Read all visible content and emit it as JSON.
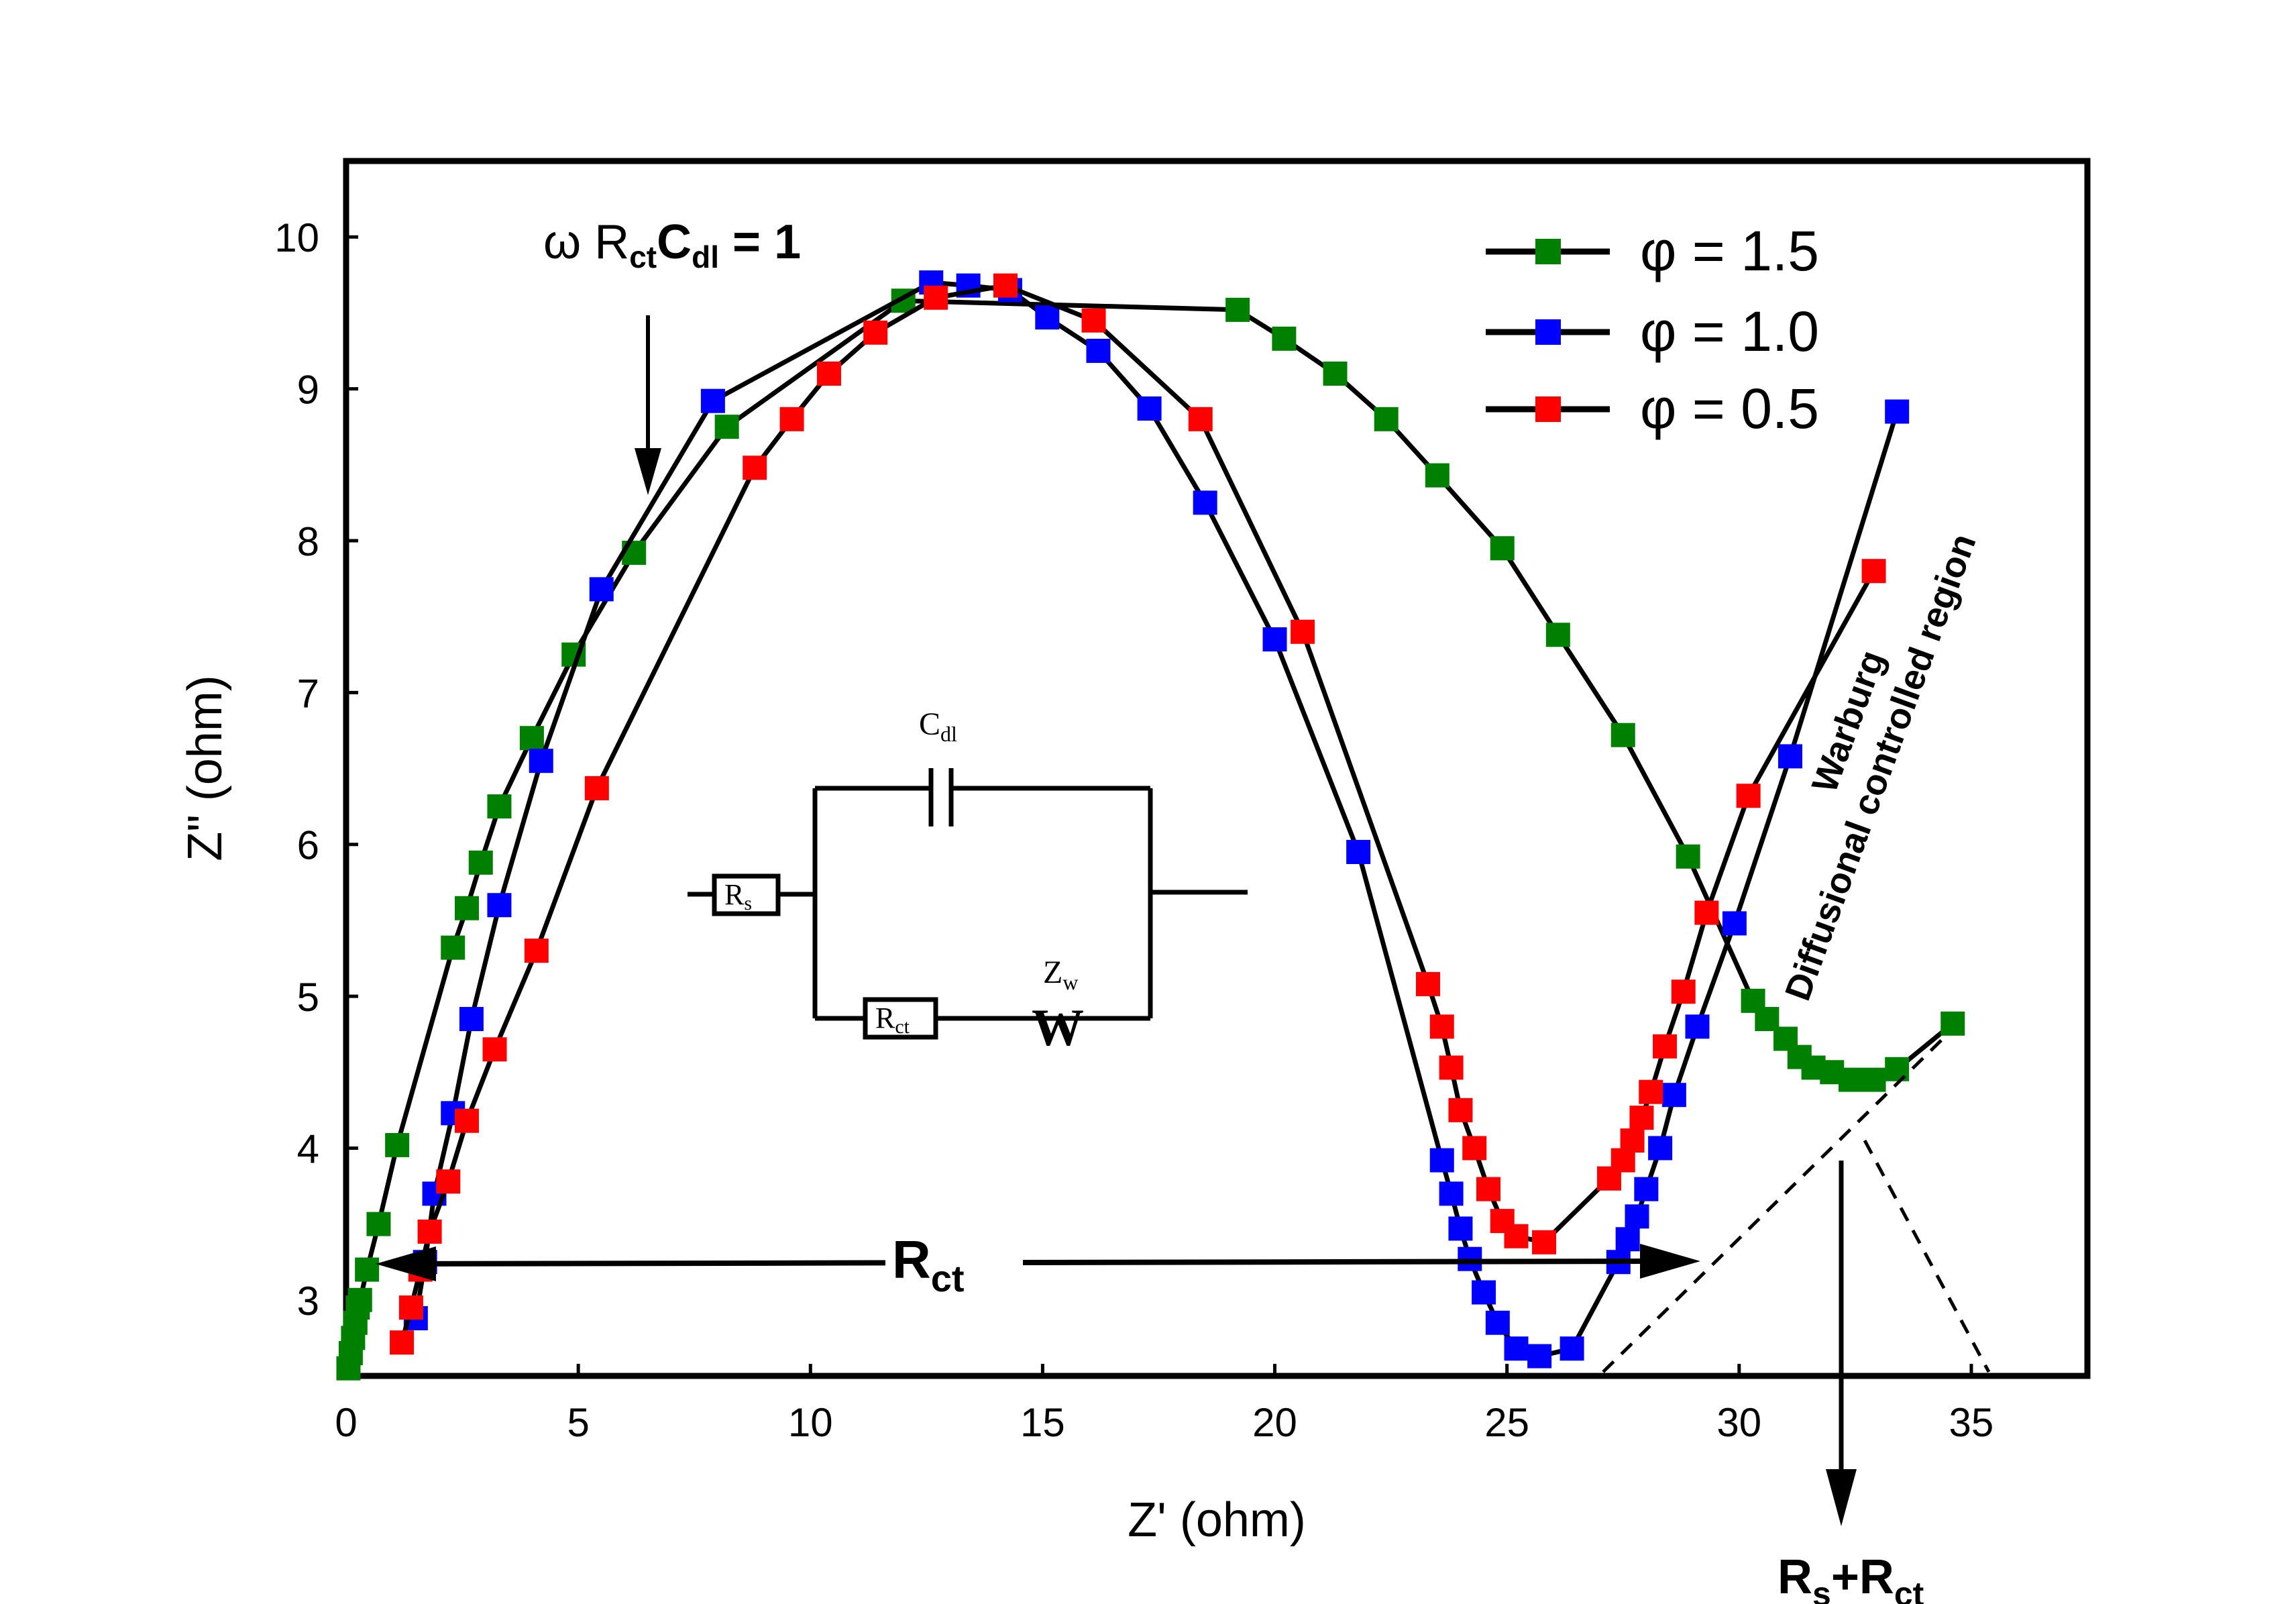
{
  "chart_data": {
    "type": "line",
    "xlabel": "Z' (ohm)",
    "ylabel": "Z\" (ohm)",
    "xlim": [
      0,
      37.5
    ],
    "ylim": [
      2.5,
      10.5
    ],
    "x_ticks": [
      0,
      5,
      10,
      15,
      20,
      25,
      30,
      35
    ],
    "x_tick_labels": [
      "0",
      "5",
      "10",
      "15",
      "20",
      "25",
      "30",
      "35"
    ],
    "y_ticks": [
      3,
      4,
      5,
      6,
      7,
      8,
      9,
      10
    ],
    "y_tick_labels": [
      "3",
      "4",
      "5",
      "6",
      "7",
      "8",
      "9",
      "10"
    ],
    "legend_position": "top-right",
    "series": [
      {
        "name": "φ = 1.5",
        "color": "#008000",
        "points": [
          [
            0.05,
            2.55
          ],
          [
            0.1,
            2.65
          ],
          [
            0.15,
            2.75
          ],
          [
            0.2,
            2.85
          ],
          [
            0.25,
            2.95
          ],
          [
            0.3,
            3.0
          ],
          [
            0.45,
            3.2
          ],
          [
            0.7,
            3.5
          ],
          [
            1.1,
            4.02
          ],
          [
            2.3,
            5.32
          ],
          [
            2.6,
            5.58
          ],
          [
            2.9,
            5.88
          ],
          [
            3.3,
            6.25
          ],
          [
            4.0,
            6.7
          ],
          [
            4.9,
            7.25
          ],
          [
            6.2,
            7.92
          ],
          [
            8.2,
            8.75
          ],
          [
            12.0,
            9.58
          ],
          [
            19.2,
            9.52
          ],
          [
            20.2,
            9.33
          ],
          [
            21.3,
            9.1
          ],
          [
            22.4,
            8.8
          ],
          [
            23.5,
            8.43
          ],
          [
            24.9,
            7.95
          ],
          [
            26.1,
            7.38
          ],
          [
            27.5,
            6.72
          ],
          [
            28.9,
            5.92
          ],
          [
            30.3,
            4.97
          ],
          [
            30.6,
            4.85
          ],
          [
            31.0,
            4.72
          ],
          [
            31.3,
            4.6
          ],
          [
            31.6,
            4.53
          ],
          [
            32.0,
            4.5
          ],
          [
            32.4,
            4.45
          ],
          [
            32.9,
            4.45
          ],
          [
            33.4,
            4.52
          ],
          [
            34.6,
            4.82
          ]
        ]
      },
      {
        "name": "φ = 1.0",
        "color": "#0000ff",
        "points": [
          [
            1.5,
            2.88
          ],
          [
            1.7,
            3.25
          ],
          [
            1.9,
            3.7
          ],
          [
            2.3,
            4.23
          ],
          [
            2.7,
            4.85
          ],
          [
            3.3,
            5.6
          ],
          [
            4.2,
            6.55
          ],
          [
            5.5,
            7.68
          ],
          [
            7.9,
            8.92
          ],
          [
            12.6,
            9.7
          ],
          [
            13.4,
            9.68
          ],
          [
            14.3,
            9.65
          ],
          [
            15.1,
            9.47
          ],
          [
            16.2,
            9.25
          ],
          [
            17.3,
            8.87
          ],
          [
            18.5,
            8.25
          ],
          [
            20.0,
            7.35
          ],
          [
            21.8,
            5.95
          ],
          [
            23.6,
            3.92
          ],
          [
            23.8,
            3.7
          ],
          [
            24.0,
            3.47
          ],
          [
            24.2,
            3.27
          ],
          [
            24.5,
            3.05
          ],
          [
            24.8,
            2.85
          ],
          [
            25.2,
            2.68
          ],
          [
            25.7,
            2.63
          ],
          [
            26.4,
            2.68
          ],
          [
            27.4,
            3.25
          ],
          [
            27.6,
            3.4
          ],
          [
            27.8,
            3.55
          ],
          [
            28.0,
            3.73
          ],
          [
            28.3,
            4.0
          ],
          [
            28.6,
            4.35
          ],
          [
            29.1,
            4.8
          ],
          [
            29.9,
            5.48
          ],
          [
            31.1,
            6.58
          ],
          [
            33.4,
            8.85
          ]
        ]
      },
      {
        "name": "φ = 0.5",
        "color": "#ff0000",
        "points": [
          [
            1.2,
            2.72
          ],
          [
            1.4,
            2.95
          ],
          [
            1.6,
            3.2
          ],
          [
            1.8,
            3.45
          ],
          [
            2.2,
            3.78
          ],
          [
            2.6,
            4.18
          ],
          [
            3.2,
            4.65
          ],
          [
            4.1,
            5.3
          ],
          [
            5.4,
            6.37
          ],
          [
            8.8,
            8.48
          ],
          [
            9.6,
            8.8
          ],
          [
            10.4,
            9.1
          ],
          [
            11.4,
            9.37
          ],
          [
            12.7,
            9.6
          ],
          [
            14.2,
            9.68
          ],
          [
            16.1,
            9.45
          ],
          [
            18.4,
            8.8
          ],
          [
            20.6,
            7.4
          ],
          [
            23.3,
            5.08
          ],
          [
            23.6,
            4.8
          ],
          [
            23.8,
            4.53
          ],
          [
            24.0,
            4.25
          ],
          [
            24.3,
            4.0
          ],
          [
            24.6,
            3.73
          ],
          [
            24.9,
            3.52
          ],
          [
            25.2,
            3.42
          ],
          [
            25.8,
            3.38
          ],
          [
            27.2,
            3.8
          ],
          [
            27.5,
            3.92
          ],
          [
            27.7,
            4.05
          ],
          [
            27.9,
            4.2
          ],
          [
            28.1,
            4.37
          ],
          [
            28.4,
            4.67
          ],
          [
            28.8,
            5.03
          ],
          [
            29.3,
            5.55
          ],
          [
            30.2,
            6.32
          ],
          [
            32.9,
            7.8
          ]
        ]
      }
    ],
    "annotations": {
      "peak_condition": "ω RctCdl = 1",
      "rct_label": "Rct",
      "rs_rct_label": "Rs+Rct",
      "warburg_label": "Warburg",
      "diffusion_label": "Diffusional controlled region"
    },
    "circuit": {
      "rs_label": "Rs",
      "cdl_label": "Cdl",
      "rct_label": "Rct",
      "zw_label": "Zw",
      "w_label": "W"
    }
  }
}
